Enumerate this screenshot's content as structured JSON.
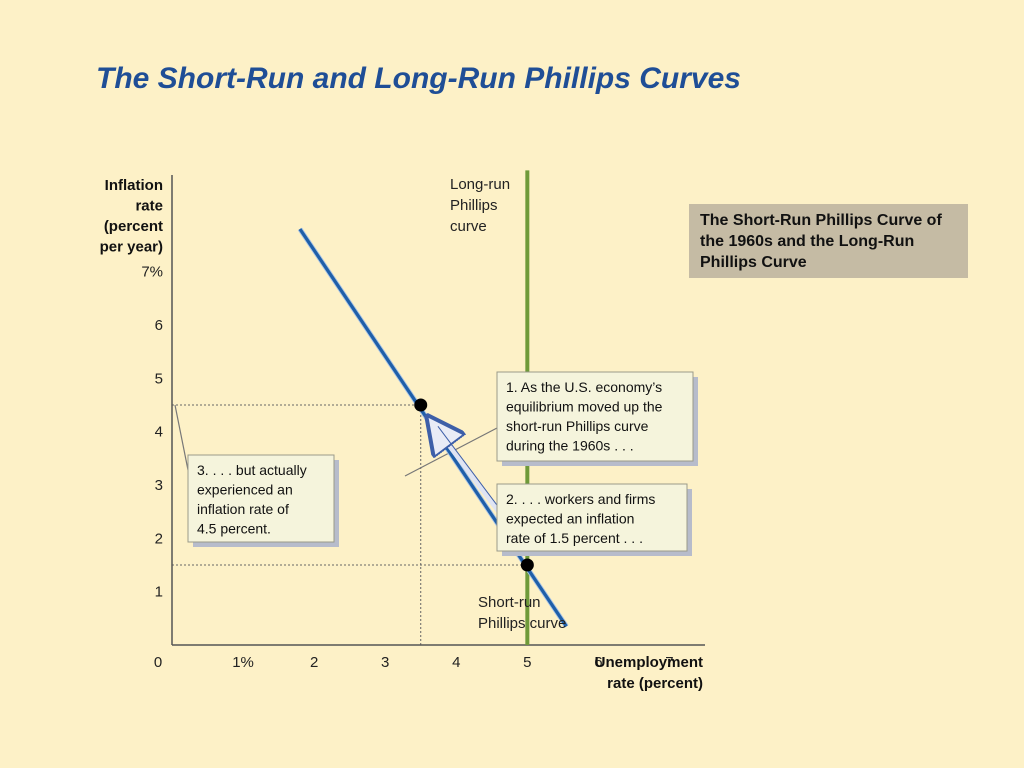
{
  "slide": {
    "title": "The Short-Run and Long-Run Phillips Curves",
    "caption": "The Short-Run Phillips Curve of the 1960s and the Long-Run Phillips Curve"
  },
  "chart_data": {
    "type": "line",
    "title": "",
    "ylabel_lines": [
      "Inflation",
      "rate",
      "(percent",
      "per year)"
    ],
    "xlabel_lines": [
      "Unemployment",
      "rate (percent)"
    ],
    "xlim": [
      0,
      7.5
    ],
    "ylim": [
      0,
      7.5
    ],
    "x_ticks": [
      {
        "v": 0,
        "label": "0"
      },
      {
        "v": 1,
        "label": "1%"
      },
      {
        "v": 2,
        "label": "2"
      },
      {
        "v": 3,
        "label": "3"
      },
      {
        "v": 4,
        "label": "4"
      },
      {
        "v": 5,
        "label": "5"
      },
      {
        "v": 6,
        "label": "6"
      },
      {
        "v": 7,
        "label": "7"
      }
    ],
    "y_ticks": [
      {
        "v": 1,
        "label": "1"
      },
      {
        "v": 2,
        "label": "2"
      },
      {
        "v": 3,
        "label": "3"
      },
      {
        "v": 4,
        "label": "4"
      },
      {
        "v": 5,
        "label": "5"
      },
      {
        "v": 6,
        "label": "6"
      },
      {
        "v": 7,
        "label": "7%"
      }
    ],
    "series": [
      {
        "name": "Short-run Phillips curve",
        "label_lines": [
          "Short-run",
          "Phillips curve"
        ],
        "color": "#1f5fa8",
        "points": [
          [
            1.8,
            7.8
          ],
          [
            5.55,
            0.35
          ]
        ]
      },
      {
        "name": "Long-run Phillips curve",
        "label_lines": [
          "Long-run",
          "Phillips",
          "curve"
        ],
        "color": "#6f9a3a",
        "points": [
          [
            5,
            0
          ],
          [
            5,
            8.9
          ]
        ]
      }
    ],
    "points": [
      {
        "x": 3.5,
        "y": 4.5
      },
      {
        "x": 5,
        "y": 1.5
      }
    ],
    "reference_lines": [
      {
        "from": [
          0,
          4.5
        ],
        "to": [
          3.5,
          4.5
        ]
      },
      {
        "from": [
          3.5,
          0
        ],
        "to": [
          3.5,
          4.5
        ]
      },
      {
        "from": [
          0,
          1.5
        ],
        "to": [
          5,
          1.5
        ]
      }
    ],
    "annotations": [
      {
        "lines": [
          "1. As the U.S. economy’s",
          "equilibrium moved up the",
          "short-run Phillips curve",
          "during the 1960s . . ."
        ]
      },
      {
        "lines": [
          "2.  . . . workers and firms",
          "expected an inflation",
          "rate of 1.5 percent . . ."
        ]
      },
      {
        "lines": [
          "3.  . . . but actually",
          "experienced an",
          "inflation rate of",
          "4.5 percent."
        ]
      }
    ],
    "movement_arrow": {
      "from": [
        4.6,
        2.5
      ],
      "to": [
        3.7,
        4.1
      ]
    },
    "grid": false,
    "legend": "none"
  }
}
